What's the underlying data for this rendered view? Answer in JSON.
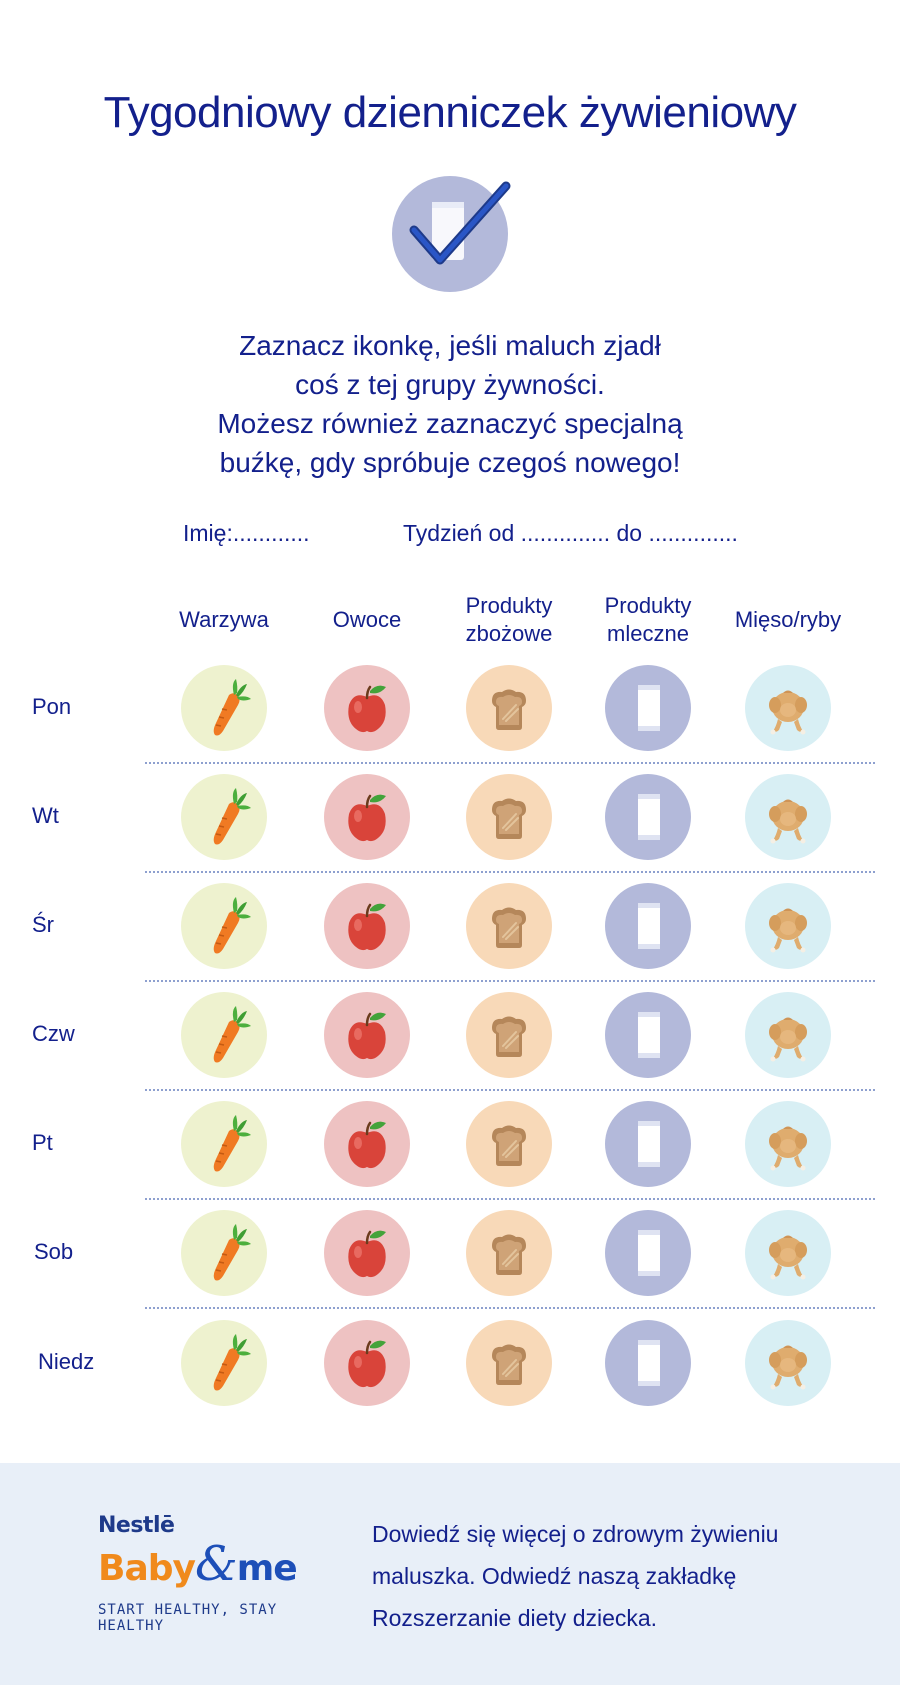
{
  "title": "Tygodniowy dzienniczek żywieniowy",
  "instructions": [
    "Zaznacz ikonkę, jeśli maluch zjadł",
    "coś z tej grupy żywności.",
    "Możesz również zaznaczyć specjalną",
    "buźkę, gdy spróbuje czegoś nowego!"
  ],
  "form": {
    "name": "Imię:............",
    "week": "Tydzień od .............. do .............."
  },
  "columns": [
    {
      "line1": "Warzywa",
      "line2": "",
      "icon": "carrot-icon",
      "color": "#eef2cf"
    },
    {
      "line1": "Owoce",
      "line2": "",
      "icon": "apple-icon",
      "color": "#eec2c2"
    },
    {
      "line1": "Produkty",
      "line2": "zbożowe",
      "icon": "bread-icon",
      "color": "#f8d9b8"
    },
    {
      "line1": "Produkty",
      "line2": "mleczne",
      "icon": "milk-glass-icon",
      "color": "#b3b9da"
    },
    {
      "line1": "Mięso/ryby",
      "line2": "",
      "icon": "chicken-icon",
      "color": "#d8eff4"
    }
  ],
  "days": [
    "Pon",
    "Wt",
    "Śr",
    "Czw",
    "Pt",
    "Sob",
    "Niedz"
  ],
  "footer": {
    "brand_top": "Nestlē",
    "brand_baby": "Baby",
    "brand_amp": "&",
    "brand_me": "me",
    "tagline": "START HEALTHY, STAY HEALTHY",
    "text": [
      "Dowiedź się więcej o zdrowym żywieniu",
      "maluszka. Odwiedź naszą zakładkę",
      "Rozszerzanie diety dziecka."
    ]
  }
}
